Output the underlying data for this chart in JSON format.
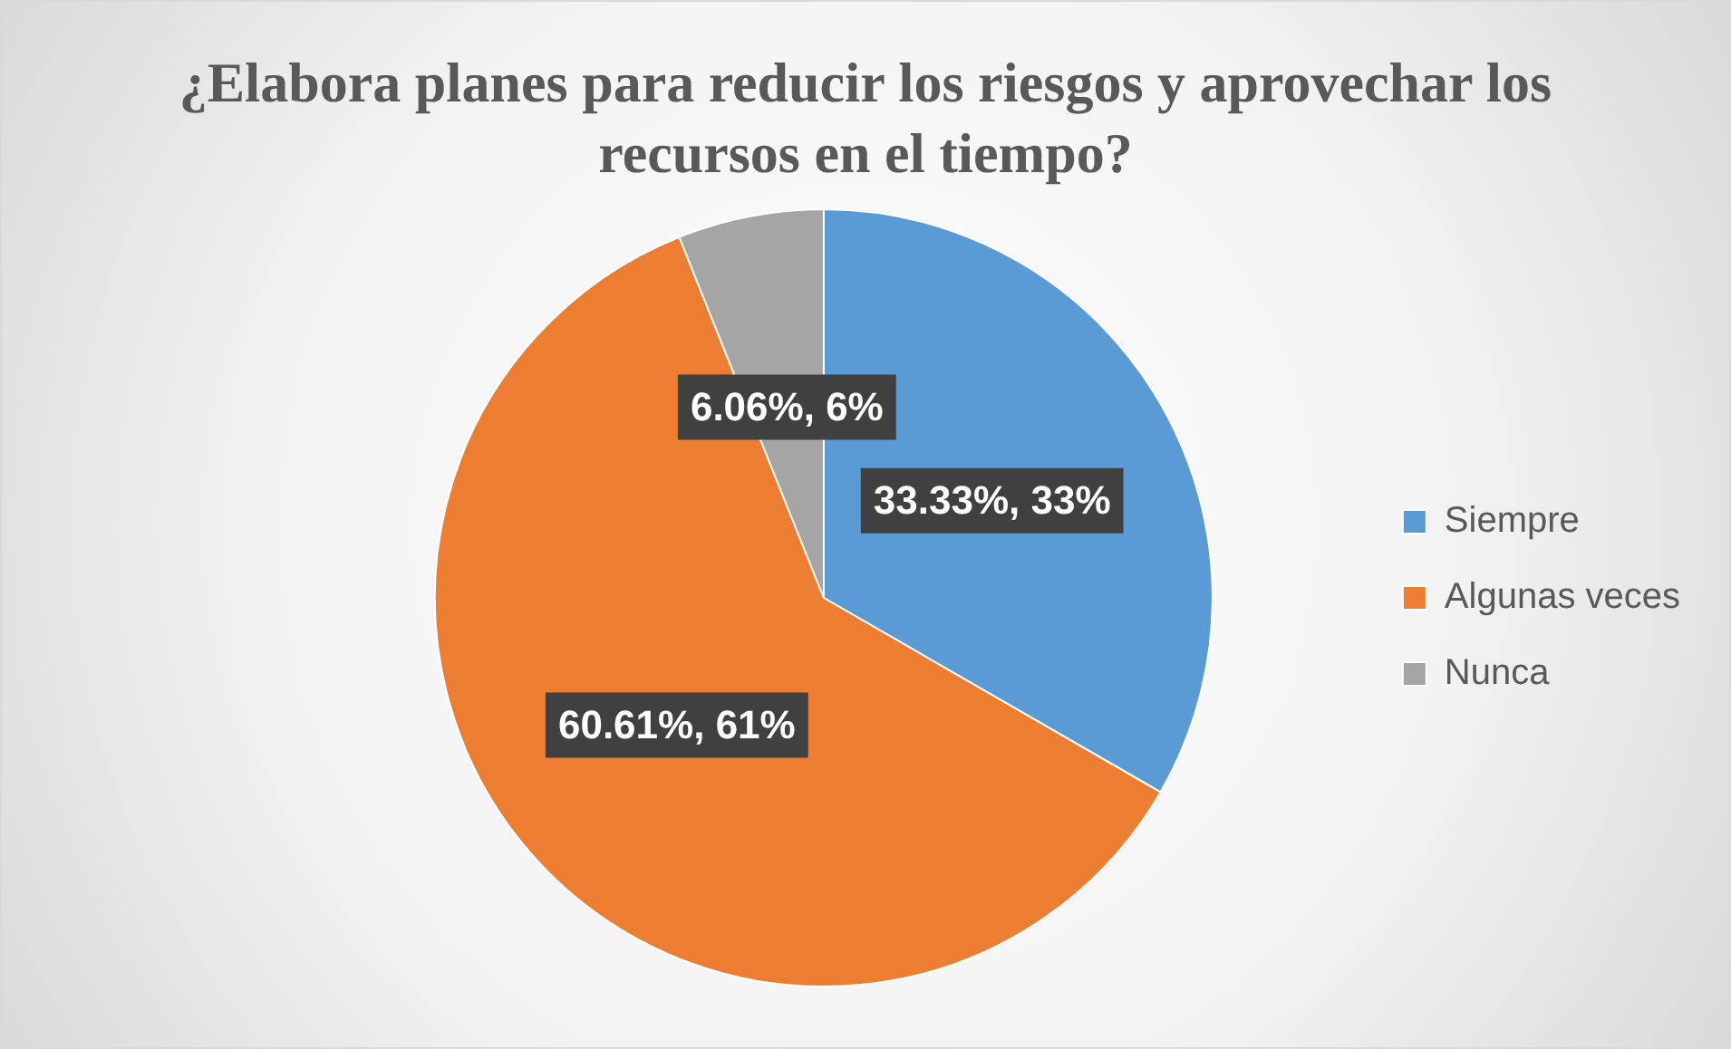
{
  "chart_data": {
    "type": "pie",
    "title": "¿Elabora planes para reducir los riesgos y aprovechar los recursos en el tiempo?",
    "categories": [
      "Siempre",
      "Algunas veces",
      "Nunca"
    ],
    "values": [
      33.33,
      60.61,
      6.06
    ],
    "value_labels": [
      "33.33%, 33%",
      "60.61%, 61%",
      "6.06%, 6%"
    ],
    "colors": [
      "#5b9bd5",
      "#ed7d31",
      "#a5a5a5"
    ],
    "legend": "right"
  }
}
